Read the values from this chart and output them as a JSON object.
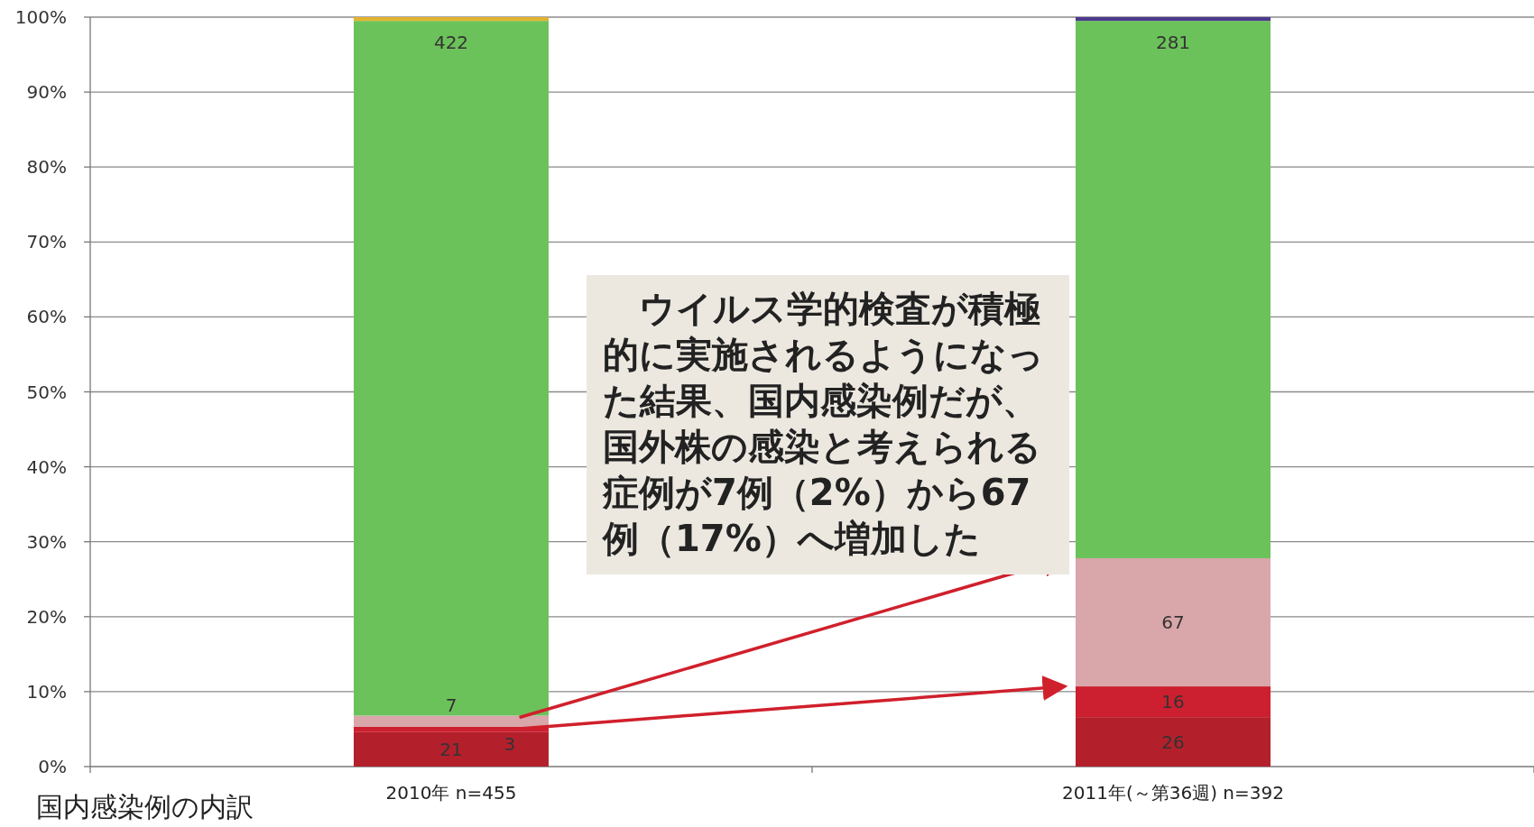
{
  "chart_data": {
    "type": "bar",
    "title": "国内感染例の内訳",
    "stacked": true,
    "grid": "y",
    "categories": [
      "2010年 n=455",
      "2011年(～第36週) n=392"
    ],
    "ylim": [
      0,
      100
    ],
    "yticks": [
      {
        "value": 0,
        "label": "0%"
      },
      {
        "value": 10,
        "label": "10%"
      },
      {
        "value": 20,
        "label": "20%"
      },
      {
        "value": 30,
        "label": "30%"
      },
      {
        "value": 40,
        "label": "40%"
      },
      {
        "value": 50,
        "label": "50%"
      },
      {
        "value": 60,
        "label": "60%"
      },
      {
        "value": 70,
        "label": "70%"
      },
      {
        "value": 80,
        "label": "80%"
      },
      {
        "value": 90,
        "label": "90%"
      },
      {
        "value": 100,
        "label": "100%"
      }
    ],
    "series": [
      {
        "color": "#b3202c",
        "values": [
          4.6,
          6.6
        ]
      },
      {
        "color": "#cc1f2f",
        "values": [
          0.7,
          4.1
        ]
      },
      {
        "color": "#d9a6aa",
        "values": [
          1.5,
          17.1
        ]
      },
      {
        "color": "#6cc25a",
        "values": [
          92.7,
          71.7
        ]
      },
      {
        "colors": [
          "#e3b32e",
          "#4b3a8c"
        ],
        "values": [
          0.5,
          0.5
        ]
      }
    ],
    "annotations": [
      "　ウイルス学的検査が積極的に実施されるようになった結果、国内感染例だが、国外株の感染と考えられる症例が7例（2%）から67例（17%）へ増加した",
      {
        "text": "21",
        "x": "2010年 n=455",
        "y": 4.6
      },
      {
        "text": "3",
        "x": "2010年 n=455",
        "y": 5.3
      },
      {
        "text": "7",
        "x": "2010年 n=455",
        "y": 6.8
      },
      {
        "text": "422",
        "x": "2010年 n=455",
        "y": 99.5
      },
      {
        "text": "26",
        "x": "2011年(～第36週) n=392",
        "y": 6.6
      },
      {
        "text": "16",
        "x": "2011年(～第36週) n=392",
        "y": 10.7
      },
      {
        "text": "67",
        "x": "2011年(～第36週) n=392",
        "y": 27.8
      },
      {
        "text": "281",
        "x": "2011年(～第36週) n=392",
        "y": 99.5
      }
    ]
  }
}
